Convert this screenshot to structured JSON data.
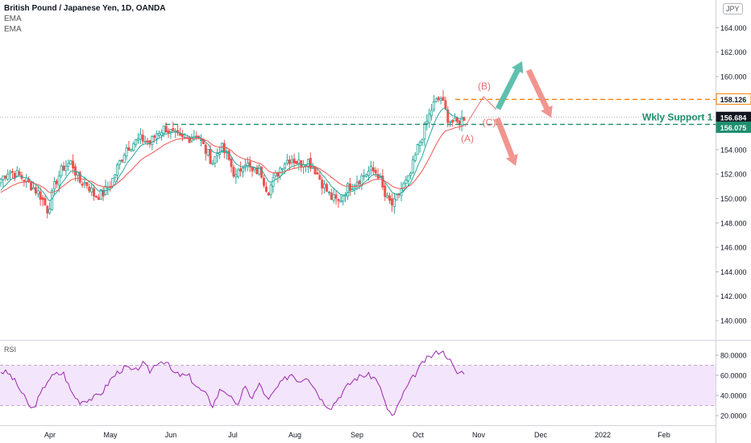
{
  "header": {
    "title": "British Pound / Japanese Yen, 1D, OANDA",
    "indicators": [
      "EMA",
      "EMA"
    ],
    "currency_badge": "JPY"
  },
  "rsi_label": "RSI",
  "colors": {
    "up": "#26a69a",
    "down": "#ef5350",
    "candle_body_up": "#ffffff",
    "ema_fast": "#26a69a",
    "ema_slow": "#ef5350",
    "resistance": "#f57c00",
    "support": "#1e8f6e",
    "rsi": "#9c27b0",
    "rsi_band": "#f3e5fb",
    "arrow_up": "#4fb8a5",
    "arrow_down": "#f08a84",
    "wave_label": "#e57373"
  },
  "chart_data": [
    {
      "type": "candlestick",
      "title": "British Pound / Japanese Yen, 1D, OANDA",
      "ylim": [
        138.0,
        166.0
      ],
      "y_ticks": [
        "140.000",
        "142.000",
        "144.000",
        "146.000",
        "148.000",
        "150.000",
        "152.000",
        "154.000",
        "156.000",
        "158.000",
        "160.000",
        "162.000",
        "164.000"
      ],
      "x_ticks": [
        "Apr",
        "May",
        "Jun",
        "Jul",
        "Aug",
        "Sep",
        "Oct",
        "Nov",
        "Dec",
        "2022",
        "Feb"
      ],
      "close_path": [
        151.6,
        152.3,
        152.0,
        151.6,
        151.0,
        150.3,
        149.0,
        151.4,
        152.6,
        153.0,
        151.4,
        151.2,
        150.2,
        150.4,
        151.2,
        152.8,
        154.2,
        154.6,
        154.9,
        154.5,
        155.5,
        155.8,
        155.2,
        154.8,
        155.0,
        155.3,
        154.0,
        153.0,
        154.3,
        153.2,
        151.6,
        153.2,
        152.1,
        152.4,
        150.6,
        151.8,
        153.0,
        153.3,
        152.9,
        153.2,
        152.4,
        151.2,
        150.1,
        149.7,
        150.8,
        151.3,
        151.8,
        152.3,
        152.1,
        150.0,
        149.4,
        150.8,
        151.6,
        154.0,
        155.8,
        157.6,
        158.3,
        156.5,
        156.1,
        156.7
      ],
      "levels": [
        {
          "name": "resistance",
          "value": 158.126,
          "label": "158.126"
        },
        {
          "name": "last-price",
          "value": 156.684,
          "label": "156.684"
        },
        {
          "name": "support",
          "value": 156.075,
          "label": "156.075"
        }
      ],
      "annotations": [
        {
          "text": "Wkly Support 1"
        },
        {
          "text": "(A)"
        },
        {
          "text": "(B)"
        },
        {
          "text": "(C)"
        }
      ]
    },
    {
      "type": "line",
      "title": "RSI",
      "ylim": [
        10,
        93
      ],
      "y_ticks": [
        "20.0000",
        "40.0000",
        "60.0000",
        "80.0000"
      ],
      "band": [
        30,
        70
      ],
      "values": [
        64,
        62,
        52,
        38,
        25,
        40,
        56,
        61,
        62,
        43,
        34,
        36,
        38,
        44,
        56,
        64,
        68,
        63,
        72,
        64,
        74,
        74,
        62,
        60,
        59,
        48,
        42,
        30,
        47,
        42,
        28,
        48,
        38,
        52,
        34,
        46,
        55,
        62,
        54,
        60,
        47,
        34,
        28,
        38,
        48,
        56,
        60,
        60,
        55,
        30,
        18,
        38,
        52,
        64,
        75,
        80,
        85,
        78,
        62,
        64
      ]
    }
  ]
}
